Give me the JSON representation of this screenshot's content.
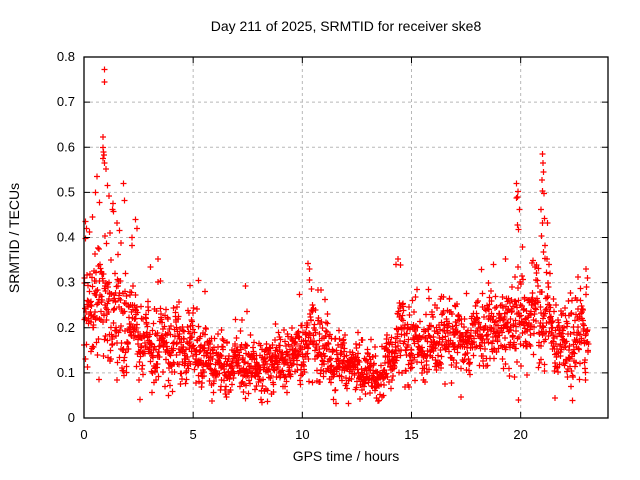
{
  "window": {
    "title": "Day 211 of 2025, SRMTID for receiver ske8"
  },
  "colors": {
    "background": "#ffffff",
    "marker": "#ff0000",
    "grid": "#b8b8b8",
    "axis": "#000000",
    "text": "#000000"
  },
  "chart_data": {
    "type": "scatter",
    "title": "Day 211 of 2025, SRMTID for receiver ske8",
    "xlabel": "GPS time / hours",
    "ylabel": "SRMTID / TECUs",
    "xlim": [
      0,
      24
    ],
    "ylim": [
      0,
      0.8
    ],
    "xticks": [
      0,
      5,
      10,
      15,
      20
    ],
    "xtick_labels": [
      "0",
      "5",
      "10",
      "15",
      "20"
    ],
    "yticks": [
      0,
      0.1,
      0.2,
      0.3,
      0.4,
      0.5,
      0.6,
      0.7,
      0.8
    ],
    "ytick_labels": [
      "0",
      "0.1",
      "0.2",
      "0.3",
      "0.4",
      "0.5",
      "0.6",
      "0.7",
      "0.8"
    ],
    "grid": true,
    "legend": "none",
    "marker": {
      "shape": "plus",
      "color": "#ff0000",
      "size": 7
    },
    "series_name": "SRMTID",
    "x_data_start": 0.0,
    "x_data_end": 23.1,
    "point_count": 2200,
    "seed": 211,
    "band_envelope_note": "dense-band lo/hi and occasional spike max vs GPS hour, read from pixels",
    "envelope": [
      {
        "t": 0.0,
        "lo": 0.13,
        "hi": 0.3,
        "max": 0.45
      },
      {
        "t": 0.3,
        "lo": 0.14,
        "hi": 0.32,
        "max": 0.44
      },
      {
        "t": 0.7,
        "lo": 0.15,
        "hi": 0.36,
        "max": 0.55
      },
      {
        "t": 1.0,
        "lo": 0.14,
        "hi": 0.38,
        "max": 0.62
      },
      {
        "t": 1.3,
        "lo": 0.13,
        "hi": 0.34,
        "max": 0.5
      },
      {
        "t": 1.8,
        "lo": 0.12,
        "hi": 0.3,
        "max": 0.52
      },
      {
        "t": 2.2,
        "lo": 0.11,
        "hi": 0.27,
        "max": 0.44
      },
      {
        "t": 2.8,
        "lo": 0.1,
        "hi": 0.24,
        "max": 0.36
      },
      {
        "t": 3.4,
        "lo": 0.09,
        "hi": 0.23,
        "max": 0.35
      },
      {
        "t": 4.0,
        "lo": 0.08,
        "hi": 0.21,
        "max": 0.3
      },
      {
        "t": 4.6,
        "lo": 0.09,
        "hi": 0.22,
        "max": 0.33
      },
      {
        "t": 5.2,
        "lo": 0.1,
        "hi": 0.22,
        "max": 0.31
      },
      {
        "t": 5.8,
        "lo": 0.08,
        "hi": 0.19,
        "max": 0.26
      },
      {
        "t": 6.5,
        "lo": 0.06,
        "hi": 0.15,
        "max": 0.21
      },
      {
        "t": 7.3,
        "lo": 0.08,
        "hi": 0.19,
        "max": 0.29
      },
      {
        "t": 7.9,
        "lo": 0.06,
        "hi": 0.15,
        "max": 0.22
      },
      {
        "t": 8.6,
        "lo": 0.06,
        "hi": 0.16,
        "max": 0.22
      },
      {
        "t": 9.2,
        "lo": 0.08,
        "hi": 0.18,
        "max": 0.24
      },
      {
        "t": 9.8,
        "lo": 0.09,
        "hi": 0.2,
        "max": 0.28
      },
      {
        "t": 10.3,
        "lo": 0.11,
        "hi": 0.26,
        "max": 0.35
      },
      {
        "t": 10.9,
        "lo": 0.09,
        "hi": 0.21,
        "max": 0.28
      },
      {
        "t": 11.5,
        "lo": 0.08,
        "hi": 0.19,
        "max": 0.26
      },
      {
        "t": 12.2,
        "lo": 0.07,
        "hi": 0.16,
        "max": 0.23
      },
      {
        "t": 12.9,
        "lo": 0.06,
        "hi": 0.14,
        "max": 0.2
      },
      {
        "t": 13.5,
        "lo": 0.05,
        "hi": 0.13,
        "max": 0.22
      },
      {
        "t": 14.0,
        "lo": 0.08,
        "hi": 0.18,
        "max": 0.3
      },
      {
        "t": 14.4,
        "lo": 0.1,
        "hi": 0.23,
        "max": 0.36
      },
      {
        "t": 15.0,
        "lo": 0.1,
        "hi": 0.23,
        "max": 0.32
      },
      {
        "t": 15.8,
        "lo": 0.11,
        "hi": 0.22,
        "max": 0.3
      },
      {
        "t": 16.4,
        "lo": 0.11,
        "hi": 0.23,
        "max": 0.31
      },
      {
        "t": 17.0,
        "lo": 0.12,
        "hi": 0.23,
        "max": 0.29
      },
      {
        "t": 17.6,
        "lo": 0.12,
        "hi": 0.24,
        "max": 0.3
      },
      {
        "t": 18.2,
        "lo": 0.12,
        "hi": 0.24,
        "max": 0.33
      },
      {
        "t": 18.8,
        "lo": 0.13,
        "hi": 0.25,
        "max": 0.36
      },
      {
        "t": 19.4,
        "lo": 0.14,
        "hi": 0.27,
        "max": 0.38
      },
      {
        "t": 19.9,
        "lo": 0.15,
        "hi": 0.3,
        "max": 0.52
      },
      {
        "t": 20.4,
        "lo": 0.14,
        "hi": 0.28,
        "max": 0.4
      },
      {
        "t": 21.0,
        "lo": 0.15,
        "hi": 0.32,
        "max": 0.585
      },
      {
        "t": 21.4,
        "lo": 0.13,
        "hi": 0.27,
        "max": 0.38
      },
      {
        "t": 22.0,
        "lo": 0.1,
        "hi": 0.22,
        "max": 0.3
      },
      {
        "t": 22.7,
        "lo": 0.11,
        "hi": 0.25,
        "max": 0.33
      },
      {
        "t": 23.1,
        "lo": 0.1,
        "hi": 0.22,
        "max": 0.3
      }
    ],
    "outliers": [
      [
        0.94,
        0.772
      ],
      [
        0.94,
        0.745
      ],
      [
        0.88,
        0.623
      ],
      [
        0.86,
        0.6
      ],
      [
        0.9,
        0.59
      ],
      [
        0.92,
        0.583
      ],
      [
        0.88,
        0.575
      ],
      [
        0.95,
        0.565
      ],
      [
        1.0,
        0.552
      ],
      [
        0.6,
        0.535
      ],
      [
        1.08,
        0.515
      ],
      [
        0.52,
        0.5
      ],
      [
        1.15,
        0.492
      ],
      [
        0.7,
        0.478
      ],
      [
        1.3,
        0.462
      ],
      [
        0.4,
        0.445
      ],
      [
        1.5,
        0.432
      ],
      [
        1.8,
        0.52
      ],
      [
        1.85,
        0.482
      ],
      [
        2.35,
        0.44
      ],
      [
        2.42,
        0.42
      ],
      [
        0.12,
        0.42
      ],
      [
        0.08,
        0.398
      ],
      [
        2.2,
        0.4
      ],
      [
        1.62,
        0.415
      ],
      [
        3.4,
        0.352
      ],
      [
        3.05,
        0.335
      ],
      [
        5.25,
        0.305
      ],
      [
        7.4,
        0.292
      ],
      [
        10.25,
        0.342
      ],
      [
        10.32,
        0.33
      ],
      [
        14.38,
        0.352
      ],
      [
        14.3,
        0.34
      ],
      [
        18.75,
        0.34
      ],
      [
        19.3,
        0.352
      ],
      [
        19.82,
        0.52
      ],
      [
        19.88,
        0.502
      ],
      [
        19.8,
        0.488
      ],
      [
        19.94,
        0.462
      ],
      [
        19.85,
        0.428
      ],
      [
        19.9,
        0.418
      ],
      [
        21.0,
        0.585
      ],
      [
        21.02,
        0.565
      ],
      [
        21.05,
        0.545
      ],
      [
        20.97,
        0.527
      ],
      [
        21.0,
        0.503
      ],
      [
        21.06,
        0.497
      ],
      [
        20.92,
        0.462
      ],
      [
        21.1,
        0.442
      ],
      [
        21.01,
        0.432
      ],
      [
        20.96,
        0.403
      ],
      [
        21.12,
        0.382
      ],
      [
        21.04,
        0.368
      ],
      [
        22.62,
        0.312
      ],
      [
        23.0,
        0.33
      ],
      [
        23.05,
        0.31
      ]
    ]
  }
}
